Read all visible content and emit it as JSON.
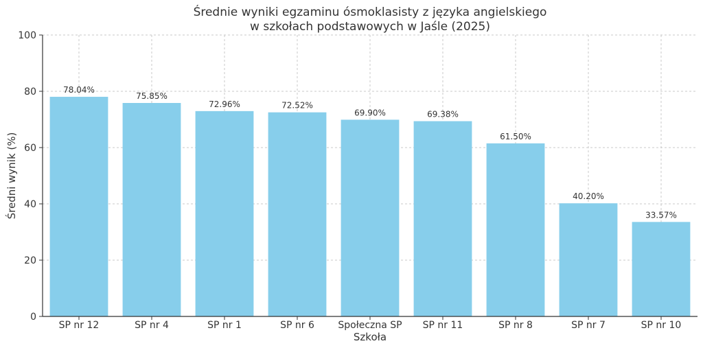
{
  "chart_data": {
    "type": "bar",
    "title_line1": "Średnie wyniki egzaminu ósmoklasisty z języka angielskiego",
    "title_line2": "w szkołach podstawowych w Jaśle (2025)",
    "xlabel": "Szkoła",
    "ylabel": "Średni wynik (%)",
    "categories": [
      "SP nr 12",
      "SP nr 4",
      "SP nr 1",
      "SP nr 6",
      "Społeczna SP",
      "SP nr 11",
      "SP nr 8",
      "SP nr 7",
      "SP nr 10"
    ],
    "values": [
      78.04,
      75.85,
      72.96,
      72.52,
      69.9,
      69.38,
      61.5,
      40.2,
      33.57
    ],
    "value_labels": [
      "78.04%",
      "75.85%",
      "72.96%",
      "72.52%",
      "69.90%",
      "69.38%",
      "61.50%",
      "40.20%",
      "33.57%"
    ],
    "ylim": [
      0,
      100
    ],
    "yticks": [
      0,
      20,
      40,
      60,
      80,
      100
    ],
    "grid": true,
    "bar_color": "#87ceeb"
  }
}
